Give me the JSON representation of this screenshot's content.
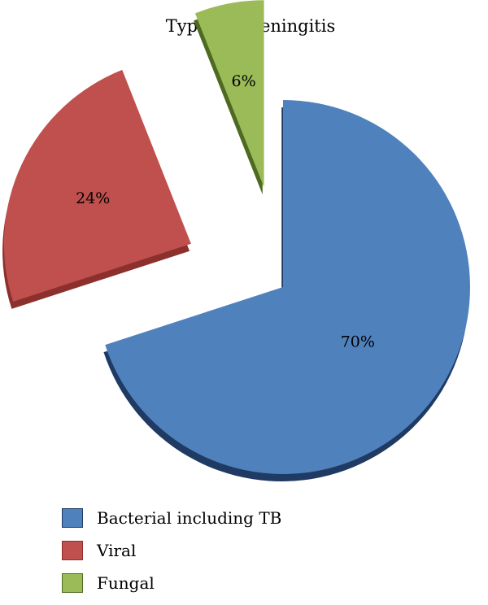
{
  "chart_data": {
    "type": "pie",
    "title": "Types of meningitis",
    "slices": [
      {
        "label": "Bacterial including TB",
        "value": 70,
        "value_label": "70%",
        "color": "#4F81BD",
        "side_color": "#1F3A63",
        "exploded": false
      },
      {
        "label": "Viral",
        "value": 24,
        "value_label": "24%",
        "color": "#C0504D",
        "side_color": "#8C302E",
        "exploded": true
      },
      {
        "label": "Fungal",
        "value": 6,
        "value_label": "6%",
        "color": "#9BBB59",
        "side_color": "#4E6A20",
        "exploded": true
      }
    ],
    "legend_position": "bottom-left"
  }
}
